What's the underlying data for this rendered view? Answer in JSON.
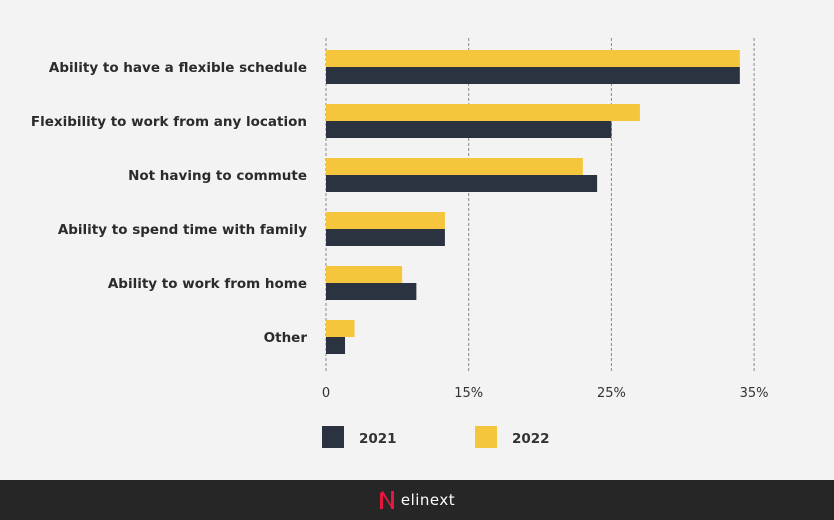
{
  "chart_data": {
    "type": "bar",
    "orientation": "horizontal",
    "categories": [
      "Ability to have a flexible schedule",
      "Flexibility to work from any location",
      "Not having to commute",
      "Ability to spend time with family",
      "Ability to work from home",
      "Other"
    ],
    "series": [
      {
        "name": "2021",
        "color": "#2c3340",
        "values": [
          34,
          25,
          24,
          12.5,
          9.5,
          2
        ]
      },
      {
        "name": "2022",
        "color": "#f5c53b",
        "values": [
          34,
          27,
          23,
          12.5,
          8,
          3
        ]
      }
    ],
    "x_ticks": [
      0,
      15,
      25,
      35
    ],
    "x_tick_labels": [
      "0",
      "15%",
      "25%",
      "35%"
    ],
    "grid": true,
    "legend_position": "bottom-left"
  },
  "footer": {
    "brand": "elinext"
  }
}
